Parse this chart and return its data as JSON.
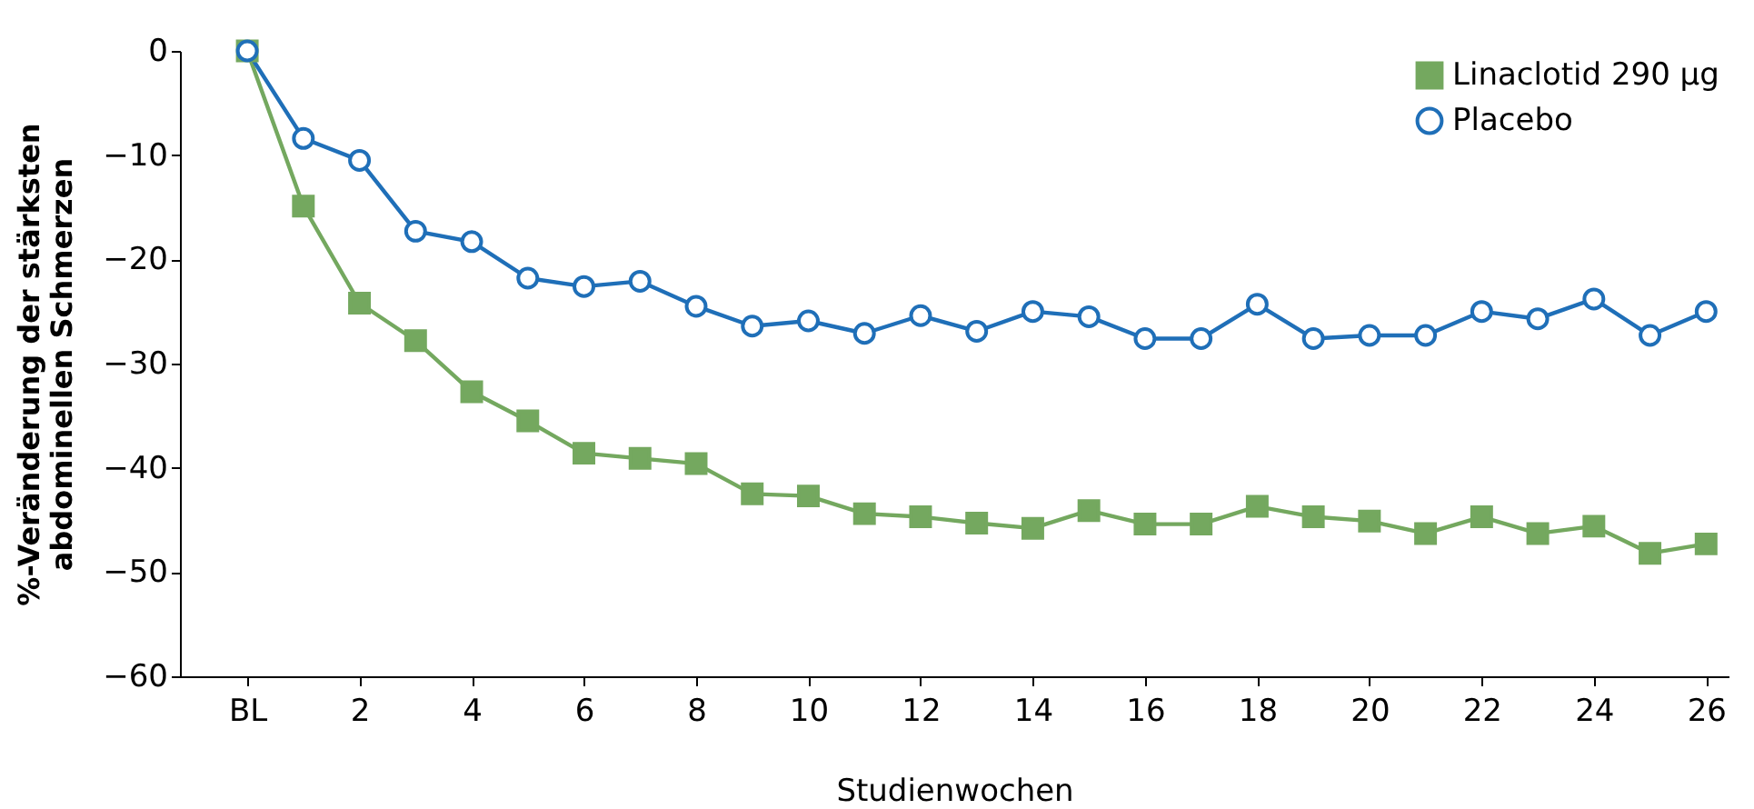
{
  "chart_data": {
    "type": "line",
    "xlabel": "Studienwochen",
    "ylabel": "%-Veränderung der stärksten\nabdominellen Schmerzen",
    "x": [
      0,
      1,
      2,
      3,
      4,
      5,
      6,
      7,
      8,
      9,
      10,
      11,
      12,
      13,
      14,
      15,
      16,
      17,
      18,
      19,
      20,
      21,
      22,
      23,
      24,
      25,
      26
    ],
    "series": [
      {
        "name": "Linaclotid 290 µg",
        "color": "#74a85f",
        "marker": "square",
        "values": [
          0,
          -14.9,
          -24.2,
          -27.8,
          -32.7,
          -35.5,
          -38.6,
          -39.1,
          -39.6,
          -42.5,
          -42.7,
          -44.4,
          -44.7,
          -45.3,
          -45.8,
          -44.1,
          -45.4,
          -45.4,
          -43.7,
          -44.7,
          -45.1,
          -46.3,
          -44.7,
          -46.3,
          -45.6,
          -48.2,
          -47.3
        ]
      },
      {
        "name": "Placebo",
        "color": "#1f6fb8",
        "marker": "circle",
        "values": [
          0,
          -8.4,
          -10.5,
          -17.3,
          -18.3,
          -21.8,
          -22.6,
          -22.1,
          -24.5,
          -26.4,
          -25.9,
          -27.1,
          -25.4,
          -26.9,
          -25.0,
          -25.5,
          -27.6,
          -27.6,
          -24.3,
          -27.6,
          -27.3,
          -27.3,
          -25.0,
          -25.7,
          -23.8,
          -27.3,
          -25.0
        ]
      }
    ],
    "xlim": [
      -1.2,
      26.4
    ],
    "xticks": [
      {
        "value": 0,
        "label": "BL"
      },
      2,
      4,
      6,
      8,
      10,
      12,
      14,
      16,
      18,
      20,
      22,
      24,
      26
    ],
    "ylim": [
      -60,
      0
    ],
    "yticks": [
      0,
      {
        "value": -10,
        "label": "−10"
      },
      {
        "value": -20,
        "label": "−20"
      },
      {
        "value": -30,
        "label": "−30"
      },
      {
        "value": -40,
        "label": "−40"
      },
      {
        "value": -50,
        "label": "−50"
      },
      {
        "value": -60,
        "label": "−60"
      }
    ],
    "grid": false,
    "legend": "top right",
    "line_style": "solid"
  }
}
